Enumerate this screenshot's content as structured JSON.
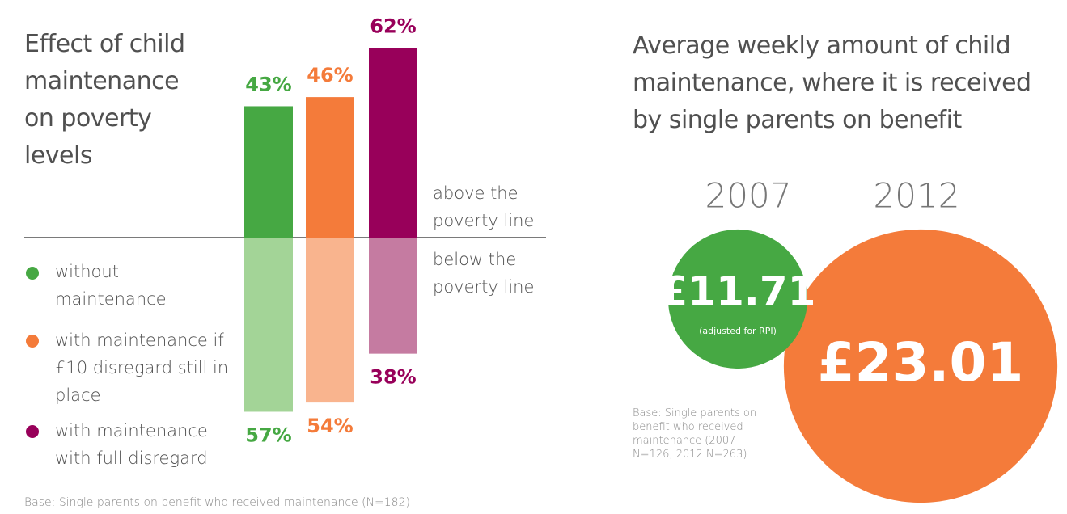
{
  "chart_data": [
    {
      "type": "diverging_bar",
      "title": "Effect of child maintenance on poverty levels",
      "categories": [
        "above the poverty line",
        "below the poverty line"
      ],
      "series": [
        {
          "name": "without maintenance",
          "color": "#46a843",
          "below_color": "#a3d497",
          "values": [
            43,
            57
          ],
          "value_labels": [
            "43%",
            "57%"
          ]
        },
        {
          "name": "with maintenance if £10 disregard still in place",
          "color": "#f47b3a",
          "below_color": "#f9b48e",
          "values": [
            46,
            54
          ],
          "value_labels": [
            "46%",
            "54%"
          ]
        },
        {
          "name": "with maintenance with full disregard",
          "color": "#98005a",
          "below_color": "#c57ba1",
          "values": [
            62,
            38
          ],
          "value_labels": [
            "62%",
            "38%"
          ]
        }
      ],
      "note": "Base: Single parents on benefit who received maintenance (N=182)"
    },
    {
      "type": "bubble",
      "title": "Average weekly amount of child maintenance, where it is received by single parents on benefit",
      "categories": [
        "2007",
        "2012"
      ],
      "values": [
        11.71,
        23.01
      ],
      "value_labels": [
        "£11.71",
        "£23.01"
      ],
      "colors": [
        "#46a843",
        "#f47b3a"
      ],
      "annotation": "(adjusted for RPI)",
      "note": "Base: Single parents on benefit who received maintenance (2007 N=126, 2012 N=263)"
    }
  ]
}
